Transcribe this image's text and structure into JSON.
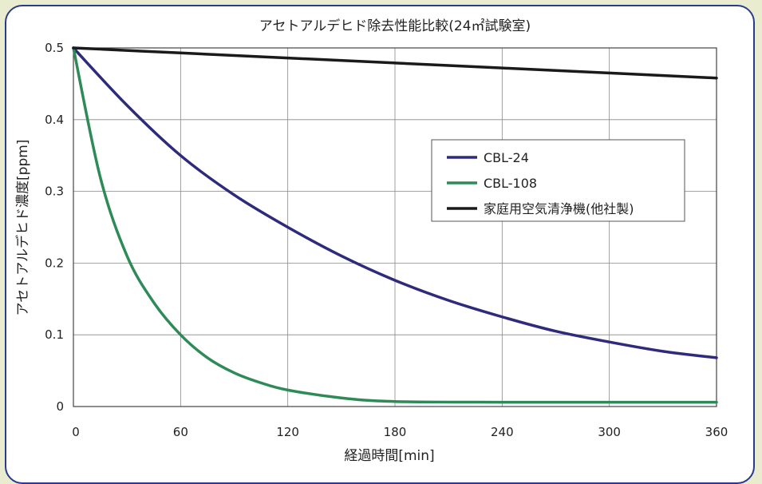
{
  "chart_data": {
    "type": "line",
    "title": "アセトアルデヒド除去性能比較(24㎡試験室)",
    "xlabel": "経過時間[min]",
    "ylabel": "アセトアルデヒド濃度[ppm]",
    "xlim": [
      0,
      360
    ],
    "ylim": [
      0,
      0.5
    ],
    "xticks": [
      0,
      60,
      120,
      180,
      240,
      300,
      360
    ],
    "yticks": [
      0,
      0.1,
      0.2,
      0.3,
      0.4,
      0.5
    ],
    "ytick_labels": [
      "0",
      "0.1",
      "0.2",
      "0.3",
      "0.4",
      "0.5"
    ],
    "grid": true,
    "legend_position": "upper-right",
    "series": [
      {
        "name": "CBL-24",
        "color": "#2e2a7c",
        "x": [
          0,
          30,
          60,
          90,
          120,
          150,
          180,
          210,
          240,
          270,
          300,
          330,
          360
        ],
        "y": [
          0.5,
          0.42,
          0.35,
          0.295,
          0.25,
          0.21,
          0.176,
          0.148,
          0.125,
          0.105,
          0.09,
          0.077,
          0.068
        ]
      },
      {
        "name": "CBL-108",
        "color": "#2e8b57",
        "x": [
          0,
          15,
          30,
          45,
          60,
          75,
          90,
          105,
          120,
          150,
          180,
          240,
          300,
          360
        ],
        "y": [
          0.5,
          0.32,
          0.21,
          0.145,
          0.1,
          0.068,
          0.047,
          0.033,
          0.023,
          0.012,
          0.007,
          0.006,
          0.006,
          0.006
        ]
      },
      {
        "name": "家庭用空気清浄機(他社製)",
        "color": "#1a1a1a",
        "x": [
          0,
          60,
          120,
          180,
          240,
          300,
          360
        ],
        "y": [
          0.5,
          0.493,
          0.486,
          0.479,
          0.472,
          0.465,
          0.458
        ]
      }
    ]
  }
}
